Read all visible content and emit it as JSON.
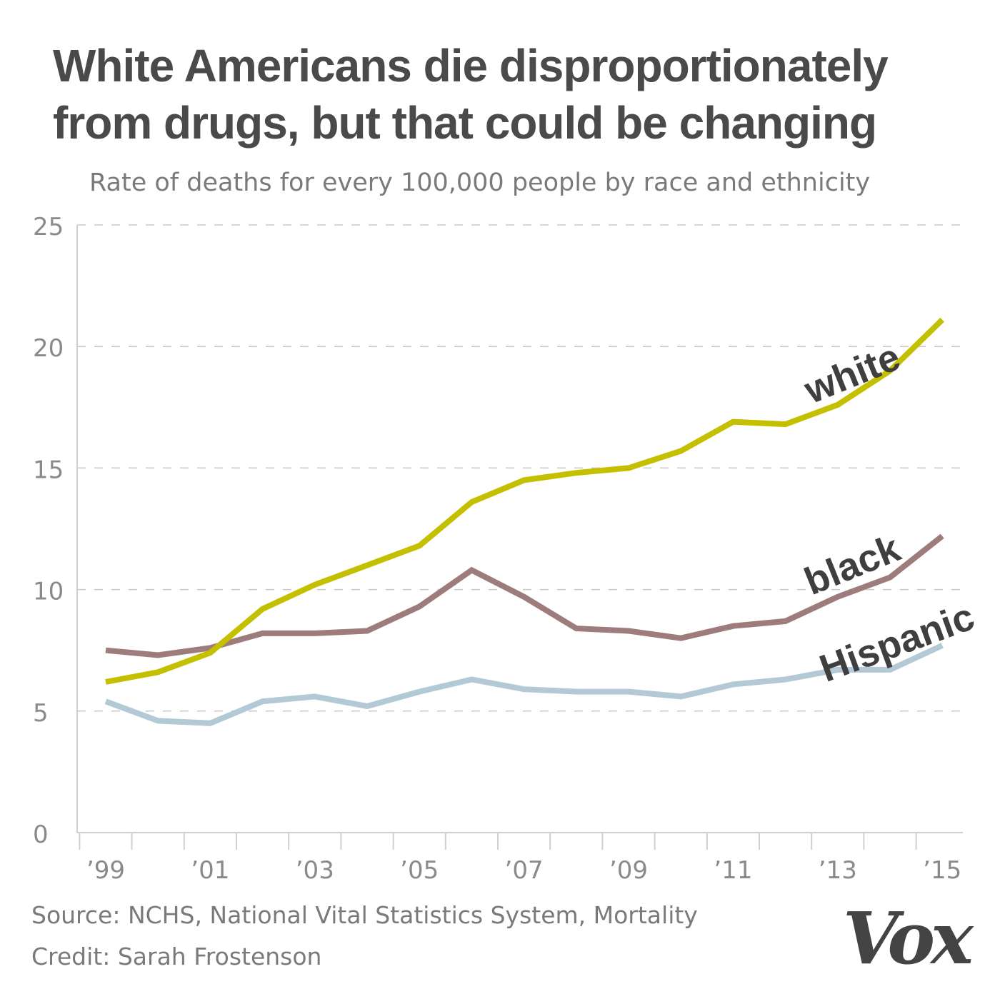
{
  "chart_data": {
    "type": "line",
    "title": "White Americans die disproportionately from drugs, but that could be changing",
    "subtitle": "Rate of deaths for every 100,000 people by race and ethnicity",
    "xlabel": "",
    "ylabel": "",
    "ylim": [
      0,
      25
    ],
    "yticks": [
      "0",
      "5",
      "10",
      "15",
      "20",
      "25"
    ],
    "x": [
      1999,
      2000,
      2001,
      2002,
      2003,
      2004,
      2005,
      2006,
      2007,
      2008,
      2009,
      2010,
      2011,
      2012,
      2013,
      2014,
      2015
    ],
    "xtick_labels": [
      "’99",
      "’01",
      "’03",
      "’05",
      "’07",
      "’09",
      "’11",
      "’13",
      "’15"
    ],
    "grid": "horizontal dashed",
    "series": [
      {
        "name": "white",
        "color": "#c4c000",
        "values": [
          6.2,
          6.6,
          7.4,
          9.2,
          10.2,
          11.0,
          11.8,
          13.6,
          14.5,
          14.8,
          15.0,
          15.7,
          16.9,
          16.8,
          17.6,
          19.0,
          21.1
        ]
      },
      {
        "name": "black",
        "color": "#9e7c7c",
        "values": [
          7.5,
          7.3,
          7.6,
          8.2,
          8.2,
          8.3,
          9.3,
          10.8,
          9.7,
          8.4,
          8.3,
          8.0,
          8.5,
          8.7,
          9.7,
          10.5,
          12.2
        ]
      },
      {
        "name": "Hispanic",
        "color": "#b3c9d6",
        "values": [
          5.4,
          4.6,
          4.5,
          5.4,
          5.6,
          5.2,
          5.8,
          6.3,
          5.9,
          5.8,
          5.8,
          5.6,
          6.1,
          6.3,
          6.7,
          6.7,
          7.7
        ]
      }
    ]
  },
  "footer": {
    "source": "Source: NCHS, National Vital Statistics System, Mortality",
    "credit": "Credit: Sarah Frostenson"
  },
  "logo": "Vox"
}
